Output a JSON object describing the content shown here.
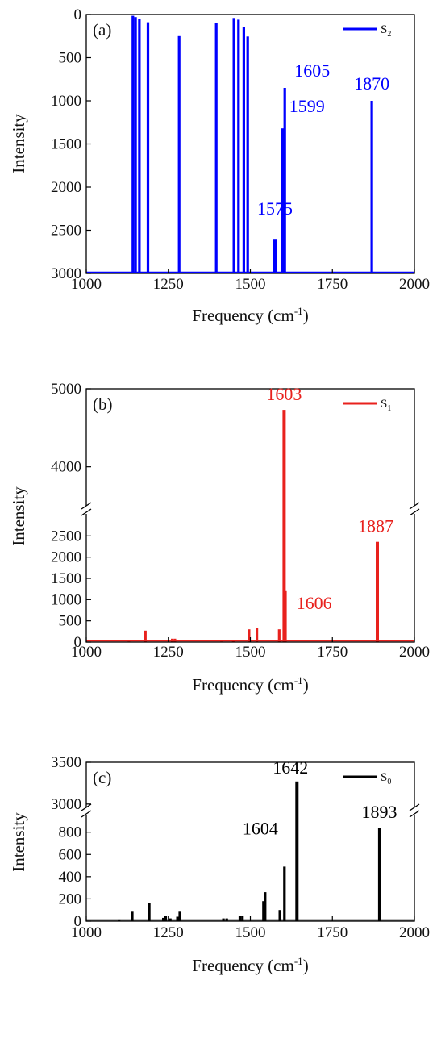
{
  "chart_data": [
    {
      "type": "bar",
      "panel": "(a)",
      "legend": {
        "name": "S",
        "subscript": "2",
        "placement": "top-right"
      },
      "color": "#0000ff",
      "xlabel": "Frequency (cm",
      "xlabel_sup": "-1",
      "xlabel_close": ")",
      "ylabel": "Intensity",
      "xlim": [
        1000,
        2000
      ],
      "ylim": [
        0,
        3000
      ],
      "xticks": [
        1000,
        1250,
        1500,
        1750,
        2000
      ],
      "yticks": [
        0,
        500,
        1000,
        1500,
        2000,
        2500,
        3000
      ],
      "bars": [
        {
          "x": 1142,
          "y": 15
        },
        {
          "x": 1150,
          "y": 30
        },
        {
          "x": 1162,
          "y": 50
        },
        {
          "x": 1188,
          "y": 90
        },
        {
          "x": 1283,
          "y": 250
        },
        {
          "x": 1396,
          "y": 100
        },
        {
          "x": 1450,
          "y": 40
        },
        {
          "x": 1464,
          "y": 60
        },
        {
          "x": 1480,
          "y": 150
        },
        {
          "x": 1492,
          "y": 255
        },
        {
          "x": 1575,
          "y": 2600
        },
        {
          "x": 1599,
          "y": 1320
        },
        {
          "x": 1605,
          "y": 850
        },
        {
          "x": 1870,
          "y": 1000
        }
      ],
      "peak_labels": [
        {
          "text": "1575",
          "x": 1575,
          "y": 2600
        },
        {
          "text": "1599",
          "x": 1599,
          "y": 1320
        },
        {
          "text": "1605",
          "x": 1605,
          "y": 850
        },
        {
          "text": "1870",
          "x": 1870,
          "y": 1000
        }
      ]
    },
    {
      "type": "bar",
      "panel": "(b)",
      "legend": {
        "name": "S",
        "subscript": "1",
        "placement": "top-right"
      },
      "color": "#e8211d",
      "xlabel": "Frequency (cm",
      "xlabel_sup": "-1",
      "xlabel_close": ")",
      "ylabel": "Intensity",
      "xlim": [
        1000,
        2000
      ],
      "y_break": {
        "lower": [
          0,
          3000
        ],
        "upper": [
          3500,
          5000
        ]
      },
      "xticks": [
        1000,
        1250,
        1500,
        1750,
        2000
      ],
      "yticks_lower": [
        0,
        500,
        1000,
        1500,
        2000,
        2500
      ],
      "yticks_upper": [
        4000,
        5000
      ],
      "bars": [
        {
          "x": 1130,
          "y": 15
        },
        {
          "x": 1180,
          "y": 270
        },
        {
          "x": 1262,
          "y": 80
        },
        {
          "x": 1270,
          "y": 80
        },
        {
          "x": 1412,
          "y": 15
        },
        {
          "x": 1448,
          "y": 20
        },
        {
          "x": 1496,
          "y": 300
        },
        {
          "x": 1520,
          "y": 340
        },
        {
          "x": 1588,
          "y": 300
        },
        {
          "x": 1603,
          "y": 4730
        },
        {
          "x": 1606,
          "y": 1200
        },
        {
          "x": 1887,
          "y": 2360
        }
      ],
      "peak_labels": [
        {
          "text": "1603",
          "x": 1603,
          "y": 4730
        },
        {
          "text": "1606",
          "x": 1606,
          "y": 1200
        },
        {
          "text": "1887",
          "x": 1887,
          "y": 2360
        }
      ]
    },
    {
      "type": "bar",
      "panel": "(c)",
      "legend": {
        "name": "S",
        "subscript": "0",
        "placement": "top-right"
      },
      "color": "#000000",
      "xlabel": "Frequency (cm",
      "xlabel_sup": "-1",
      "xlabel_close": ")",
      "ylabel": "Intensity",
      "xlim": [
        1000,
        2000
      ],
      "y_break": {
        "lower": [
          0,
          950
        ],
        "upper": [
          2950,
          3500
        ]
      },
      "xticks": [
        1000,
        1250,
        1500,
        1750,
        2000
      ],
      "yticks_lower": [
        0,
        200,
        400,
        600,
        800
      ],
      "yticks_upper": [
        3000,
        3500
      ],
      "bars": [
        {
          "x": 1100,
          "y": 15
        },
        {
          "x": 1140,
          "y": 85
        },
        {
          "x": 1192,
          "y": 160
        },
        {
          "x": 1235,
          "y": 30
        },
        {
          "x": 1242,
          "y": 45
        },
        {
          "x": 1256,
          "y": 25
        },
        {
          "x": 1278,
          "y": 40
        },
        {
          "x": 1285,
          "y": 85
        },
        {
          "x": 1418,
          "y": 25
        },
        {
          "x": 1428,
          "y": 25
        },
        {
          "x": 1468,
          "y": 50
        },
        {
          "x": 1476,
          "y": 50
        },
        {
          "x": 1540,
          "y": 180
        },
        {
          "x": 1545,
          "y": 260
        },
        {
          "x": 1590,
          "y": 100
        },
        {
          "x": 1604,
          "y": 490
        },
        {
          "x": 1642,
          "y": 3270
        },
        {
          "x": 1893,
          "y": 840
        }
      ],
      "peak_labels": [
        {
          "text": "1642",
          "x": 1642,
          "y": 3270
        },
        {
          "text": "1604",
          "x": 1604,
          "y": 490
        },
        {
          "text": "1893",
          "x": 1893,
          "y": 840
        }
      ]
    }
  ]
}
